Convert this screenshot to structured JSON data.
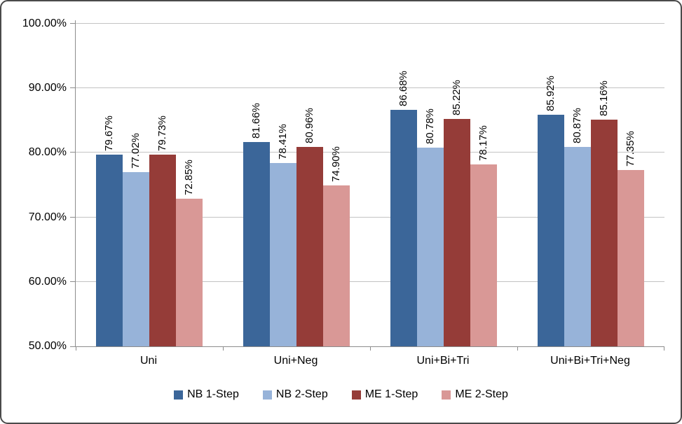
{
  "chart_data": {
    "type": "bar",
    "title": "",
    "xlabel": "",
    "ylabel": "",
    "categories": [
      "Uni",
      "Uni+Neg",
      "Uni+Bi+Tri",
      "Uni+Bi+Tri+Neg"
    ],
    "series": [
      {
        "name": "NB 1-Step",
        "color": "#3B6699",
        "values": [
          79.67,
          81.66,
          86.68,
          85.92
        ],
        "labels": [
          "79.67%",
          "81.66%",
          "86.68%",
          "85.92%"
        ]
      },
      {
        "name": "NB 2-Step",
        "color": "#97B3D9",
        "values": [
          77.02,
          78.41,
          80.78,
          80.87
        ],
        "labels": [
          "77.02%",
          "78.41%",
          "80.78%",
          "80.87%"
        ]
      },
      {
        "name": "ME 1-Step",
        "color": "#953C38",
        "values": [
          79.73,
          80.96,
          85.22,
          85.16
        ],
        "labels": [
          "79.73%",
          "80.96%",
          "85.22%",
          "85.16%"
        ]
      },
      {
        "name": "ME 2-Step",
        "color": "#D99896",
        "values": [
          72.85,
          74.9,
          78.17,
          77.35
        ],
        "labels": [
          "72.85%",
          "74.90%",
          "78.17%",
          "77.35%"
        ]
      }
    ],
    "y_axis": {
      "min": 50,
      "max": 100,
      "step": 10,
      "tick_labels": [
        "50.00%",
        "60.00%",
        "70.00%",
        "80.00%",
        "90.00%",
        "100.00%"
      ]
    },
    "data_label_rotation_deg": -90,
    "legend_position": "bottom",
    "grid": true,
    "colors": {
      "gridline": "#c3c3c3",
      "axis": "#8c8c8c",
      "frame_border": "#4a4a4a",
      "background": "#ffffff"
    }
  }
}
